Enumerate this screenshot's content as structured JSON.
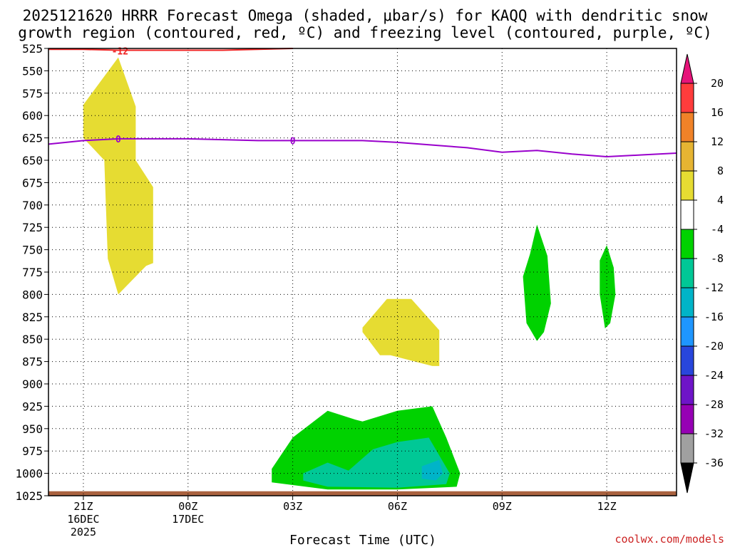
{
  "title": {
    "line1": "2025121620 HRRR Forecast Omega (shaded, μbar/s) for KAQQ with dendritic snow",
    "line2": "growth region (contoured, red, ºC) and freezing level (contoured, purple, ºC)"
  },
  "credit": "coolwx.com/models",
  "chart_data": {
    "type": "heatmap",
    "title": "2025121620 HRRR Forecast Omega (shaded, μbar/s) for KAQQ with dendritic snow growth region (contoured, red, ºC) and freezing level (contoured, purple, ºC)",
    "xlabel": "Forecast Time (UTC)",
    "ylabel": "",
    "x_unit": "hours after 20Z 16DEC2025",
    "xlim": [
      0,
      18
    ],
    "ylim": [
      1025,
      525
    ],
    "y_ticks": [
      525,
      550,
      575,
      600,
      625,
      650,
      675,
      700,
      725,
      750,
      775,
      800,
      825,
      850,
      875,
      900,
      925,
      950,
      975,
      1000,
      1025
    ],
    "x_ticks": [
      {
        "x": 1,
        "label": "21Z",
        "sub1": "16DEC",
        "sub2": "2025"
      },
      {
        "x": 4,
        "label": "00Z",
        "sub1": "17DEC",
        "sub2": ""
      },
      {
        "x": 7,
        "label": "03Z",
        "sub1": "",
        "sub2": ""
      },
      {
        "x": 10,
        "label": "06Z",
        "sub1": "",
        "sub2": ""
      },
      {
        "x": 13,
        "label": "09Z",
        "sub1": "",
        "sub2": ""
      },
      {
        "x": 16,
        "label": "12Z",
        "sub1": "",
        "sub2": ""
      }
    ],
    "grid": true,
    "shaded_regions": [
      {
        "name": "omega 4 to 8",
        "color": "#e6dc32",
        "points": [
          [
            1.0,
            588
          ],
          [
            2.0,
            535
          ],
          [
            2.5,
            590
          ],
          [
            2.5,
            650
          ],
          [
            3.0,
            680
          ],
          [
            3.0,
            765
          ],
          [
            2.8,
            768
          ],
          [
            2.0,
            800
          ],
          [
            1.7,
            760
          ],
          [
            1.6,
            650
          ],
          [
            1.0,
            625
          ]
        ]
      },
      {
        "name": "omega 4 to 8",
        "color": "#e6dc32",
        "points": [
          [
            9.0,
            837
          ],
          [
            9.7,
            805
          ],
          [
            10.4,
            805
          ],
          [
            11.2,
            840
          ],
          [
            11.2,
            880
          ],
          [
            11.0,
            880
          ],
          [
            9.8,
            868
          ],
          [
            9.5,
            868
          ],
          [
            9.0,
            842
          ]
        ]
      },
      {
        "name": "omega -4 to -8",
        "color": "#00d200",
        "points": [
          [
            6.4,
            995
          ],
          [
            7.0,
            960
          ],
          [
            8.0,
            930
          ],
          [
            8.8,
            940
          ],
          [
            9.0,
            942
          ],
          [
            10.0,
            930
          ],
          [
            11.0,
            925
          ],
          [
            11.4,
            960
          ],
          [
            11.8,
            1000
          ],
          [
            11.7,
            1015
          ],
          [
            10.0,
            1018
          ],
          [
            8.0,
            1018
          ],
          [
            6.4,
            1010
          ]
        ]
      },
      {
        "name": "omega -8 to -12",
        "color": "#00c896",
        "points": [
          [
            7.3,
            1000
          ],
          [
            8.0,
            988
          ],
          [
            8.6,
            997
          ],
          [
            9.3,
            973
          ],
          [
            10.0,
            965
          ],
          [
            10.9,
            960
          ],
          [
            11.5,
            1000
          ],
          [
            11.4,
            1012
          ],
          [
            10.0,
            1016
          ],
          [
            8.0,
            1015
          ],
          [
            7.3,
            1008
          ]
        ]
      },
      {
        "name": "omega -12 to -16",
        "color": "#00b4c8",
        "points": [
          [
            10.7,
            992
          ],
          [
            11.2,
            985
          ],
          [
            11.3,
            1000
          ],
          [
            11.1,
            1008
          ],
          [
            10.7,
            1006
          ]
        ]
      },
      {
        "name": "omega -4 to -8",
        "color": "#00d200",
        "points": [
          [
            13.8,
            755
          ],
          [
            14.0,
            722
          ],
          [
            14.3,
            757
          ],
          [
            14.4,
            810
          ],
          [
            14.2,
            842
          ],
          [
            14.0,
            852
          ],
          [
            13.7,
            832
          ],
          [
            13.6,
            780
          ]
        ]
      },
      {
        "name": "omega -4 to -8",
        "color": "#00d200",
        "points": [
          [
            15.8,
            762
          ],
          [
            16.0,
            745
          ],
          [
            16.2,
            770
          ],
          [
            16.25,
            800
          ],
          [
            16.1,
            832
          ],
          [
            15.95,
            838
          ],
          [
            15.8,
            800
          ]
        ]
      }
    ],
    "surface_band": {
      "color": "#a9623f",
      "from_pressure": 1025,
      "to_pressure": 1020
    },
    "freezing_level": {
      "color": "#9900cc",
      "label": "0",
      "x": [
        0,
        1,
        2,
        3,
        4,
        5,
        6,
        7,
        8,
        9,
        10,
        11,
        12,
        13,
        14,
        15,
        16,
        17,
        18
      ],
      "y": [
        632,
        628,
        626,
        626,
        626,
        627,
        628,
        628,
        628,
        628,
        630,
        633,
        636,
        641,
        639,
        643,
        646,
        644,
        642
      ]
    },
    "dgz_contour": {
      "color": "#ee2222",
      "label": "-12",
      "x": [
        0,
        1,
        2,
        3,
        4,
        5,
        6,
        7
      ],
      "y": [
        526,
        526,
        527,
        527,
        527,
        527,
        526,
        525
      ]
    },
    "colorbar": {
      "labels": [
        "20",
        "16",
        "12",
        "8",
        "4",
        "-4",
        "-8",
        "-12",
        "-16",
        "-20",
        "-24",
        "-28",
        "-32",
        "-36"
      ],
      "bins": [
        {
          "color": "#ff3c3c",
          "lo": 16,
          "hi": 20
        },
        {
          "color": "#f08228",
          "lo": 12,
          "hi": 16
        },
        {
          "color": "#e6b432",
          "lo": 8,
          "hi": 12
        },
        {
          "color": "#e6dc32",
          "lo": 4,
          "hi": 8
        },
        {
          "color": "#ffffff",
          "lo": -4,
          "hi": 4
        },
        {
          "color": "#00d200",
          "lo": -8,
          "hi": -4
        },
        {
          "color": "#00c896",
          "lo": -12,
          "hi": -8
        },
        {
          "color": "#00b4c8",
          "lo": -16,
          "hi": -12
        },
        {
          "color": "#1e96ff",
          "lo": -20,
          "hi": -16
        },
        {
          "color": "#2846dc",
          "lo": -24,
          "hi": -20
        },
        {
          "color": "#6e14c8",
          "lo": -28,
          "hi": -24
        },
        {
          "color": "#9600b4",
          "lo": -32,
          "hi": -28
        },
        {
          "color": "#a0a0a0",
          "lo": -36,
          "hi": -32
        }
      ],
      "top_arrow_color": "#e6147a",
      "bottom_arrow_color": "#000000"
    }
  }
}
